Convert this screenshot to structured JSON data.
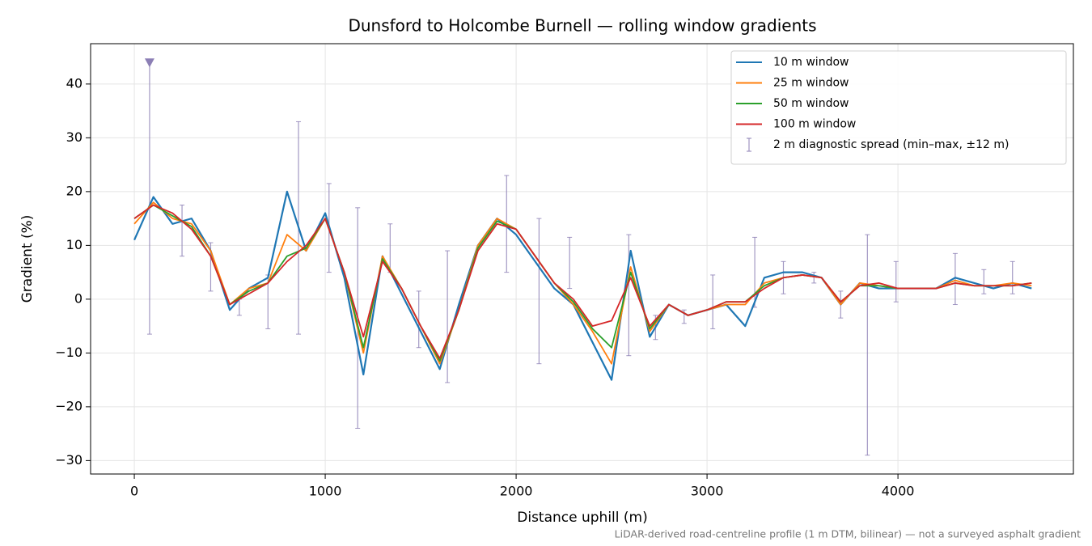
{
  "chart_data": {
    "type": "line",
    "title": "Dunsford to Holcombe Burnell — rolling window gradients",
    "x_label": "Distance uphill (m)",
    "y_label": "Gradient (%)",
    "footnote": "LiDAR-derived road-centreline profile (1 m DTM, bilinear) — not a surveyed asphalt gradient",
    "x": [
      0,
      100,
      200,
      300,
      400,
      500,
      600,
      700,
      800,
      900,
      1000,
      1100,
      1200,
      1300,
      1400,
      1500,
      1600,
      1700,
      1800,
      1900,
      2000,
      2100,
      2200,
      2300,
      2400,
      2500,
      2600,
      2700,
      2800,
      2900,
      3000,
      3100,
      3200,
      3300,
      3400,
      3500,
      3600,
      3700,
      3800,
      3900,
      4000,
      4100,
      4200,
      4300,
      4400,
      4500,
      4600,
      4700
    ],
    "series": [
      {
        "name": "10 m window",
        "color": "#1f77b4",
        "values": [
          11,
          19,
          14,
          15,
          9,
          -2,
          2,
          4,
          20,
          9,
          16,
          4,
          -14,
          8,
          1,
          -6,
          -13,
          -1,
          10,
          15,
          12,
          7,
          2,
          -1,
          -8,
          -15,
          9,
          -7,
          -1,
          -3,
          -2,
          -1,
          -5,
          4,
          5,
          5,
          4,
          -1,
          3,
          2,
          2,
          2,
          2,
          4,
          3,
          2,
          3,
          2
        ]
      },
      {
        "name": "25 m window",
        "color": "#ff7f0e",
        "values": [
          14,
          18,
          15,
          14,
          9,
          -1,
          2,
          3,
          12,
          9,
          15,
          5,
          -10,
          8,
          2,
          -5,
          -12,
          -2,
          10,
          15,
          13,
          8,
          3,
          -1,
          -6,
          -12,
          6,
          -6,
          -1,
          -3,
          -2,
          -1,
          -1,
          3,
          4,
          4.5,
          4,
          -1,
          3,
          2.5,
          2,
          2,
          2,
          3.5,
          2.5,
          2.5,
          3,
          2.5
        ]
      },
      {
        "name": "50 m window",
        "color": "#2ca02c",
        "values": [
          15,
          17.5,
          15.5,
          13.5,
          8,
          -1,
          1.5,
          3,
          8,
          9.5,
          15,
          5,
          -9,
          7.5,
          2,
          -5,
          -11.5,
          -2,
          9.5,
          14.5,
          13,
          8,
          3,
          -0.5,
          -5.5,
          -9,
          5,
          -5.5,
          -1,
          -3,
          -2,
          -0.5,
          -0.5,
          2.5,
          4,
          4.5,
          4,
          -0.5,
          2.5,
          2.5,
          2,
          2,
          2,
          3,
          2.5,
          2.5,
          2.5,
          3
        ]
      },
      {
        "name": "100 m window",
        "color": "#d62728",
        "values": [
          15,
          17.5,
          16,
          13,
          8,
          -1,
          1,
          3,
          7,
          10,
          15,
          5,
          -7,
          7,
          2,
          -5,
          -11,
          -2,
          9,
          14,
          13,
          8,
          3,
          0,
          -5,
          -4,
          4,
          -5,
          -1,
          -3,
          -2,
          -0.5,
          -0.5,
          2,
          4,
          4.5,
          4,
          -0.5,
          2.5,
          3,
          2,
          2,
          2,
          3,
          2.5,
          2.5,
          2.5,
          3
        ]
      }
    ],
    "errorbars": {
      "name": "2 m diagnostic spread (min–max, ±12 m)",
      "color": "#8c7fb5",
      "x": [
        80,
        250,
        400,
        550,
        700,
        860,
        1020,
        1170,
        1340,
        1490,
        1640,
        1950,
        2120,
        2280,
        2590,
        2730,
        2880,
        3030,
        3250,
        3400,
        3560,
        3700,
        3840,
        3990,
        4300,
        4450,
        4600
      ],
      "low": [
        -6.5,
        8,
        1.5,
        -3,
        -5.5,
        -6.5,
        5,
        -24,
        5,
        -9,
        -15.5,
        5,
        -12,
        2,
        -10.5,
        -7.5,
        -4.5,
        -5.5,
        -1.5,
        1,
        3,
        -3.5,
        -29,
        -0.5,
        -1,
        1,
        1
      ],
      "high": [
        44,
        17.5,
        10.5,
        0,
        4.5,
        33,
        21.5,
        17,
        14,
        1.5,
        9,
        23,
        15,
        11.5,
        12,
        -3,
        -2,
        4.5,
        11.5,
        7,
        5,
        1.5,
        12,
        7,
        8.5,
        5.5,
        7
      ]
    },
    "xlim": [
      -229,
      4919
    ],
    "ylim": [
      -32.5,
      47.5
    ],
    "xticks": [
      0,
      1000,
      2000,
      3000,
      4000
    ],
    "yticks": [
      {
        "value": -30,
        "label": "−30"
      },
      {
        "value": -20,
        "label": "−20"
      },
      {
        "value": -10,
        "label": "−10"
      },
      0,
      10,
      20,
      30,
      40
    ],
    "grid": true,
    "legend": "upper-right"
  }
}
